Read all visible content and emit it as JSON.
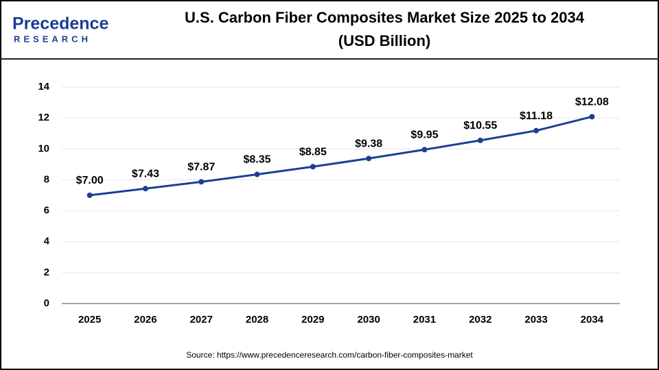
{
  "logo": {
    "name": "Precedence",
    "sub": "RESEARCH"
  },
  "chart_data": {
    "type": "line",
    "title": "U.S. Carbon Fiber Composites Market  Size 2025 to 2034",
    "subtitle": "(USD Billion)",
    "categories": [
      "2025",
      "2026",
      "2027",
      "2028",
      "2029",
      "2030",
      "2031",
      "2032",
      "2033",
      "2034"
    ],
    "series": [
      {
        "name": "U.S. Carbon Fiber Composites Market",
        "color": "#1c3f94",
        "values": [
          7.0,
          7.43,
          7.87,
          8.35,
          8.85,
          9.38,
          9.95,
          10.55,
          11.18,
          12.08
        ],
        "value_labels": [
          "$7.00",
          "$7.43",
          "$7.87",
          "$8.35",
          "$8.85",
          "$9.38",
          "$9.95",
          "$10.55",
          "$11.18",
          "$12.08"
        ]
      }
    ],
    "ylim": [
      0,
      14
    ],
    "yticks": [
      0,
      2,
      4,
      6,
      8,
      10,
      12,
      14
    ],
    "grid": true,
    "source": "Source: https://www.precedenceresearch.com/carbon-fiber-composites-market"
  }
}
